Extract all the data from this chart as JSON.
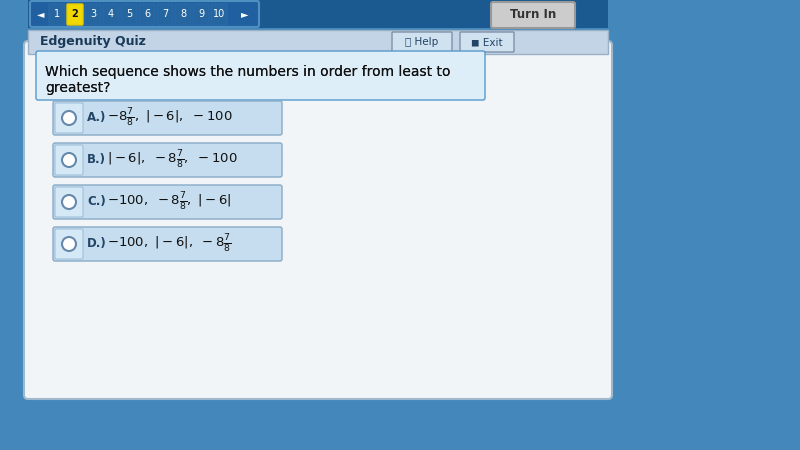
{
  "bg_outer": "#4488bb",
  "bg_content": "#e8eef5",
  "nav_bg": "#2266aa",
  "nav_container_bg": "#1a5590",
  "nav_numbers": [
    "1",
    "2",
    "3",
    "4",
    "5",
    "6",
    "7",
    "8",
    "9",
    "10"
  ],
  "current_num": "2",
  "turn_in": "Turn In",
  "quiz_label": "Edgenuity Quiz",
  "help_label": "Help",
  "exit_label": "Exit",
  "quiz_bar_bg": "#c8d8e8",
  "title_line1": "Which sequence shows the numbers in order from least to",
  "title_line2": "greatest?",
  "option_bg": "#c5ddef",
  "option_label_bg": "#b8cfe8",
  "options": [
    "A.)",
    "B.)",
    "C.)",
    "D.)"
  ],
  "option_texts": [
    "-8\\frac{7}{8},\\ |-6|,\\ -100",
    "|-6|,\\ -8\\frac{7}{8},\\ -100",
    "-100,\\ -8\\frac{7}{8},\\ |-6|",
    "-100,\\ |-6|,\\ -8\\frac{7}{8}"
  ]
}
